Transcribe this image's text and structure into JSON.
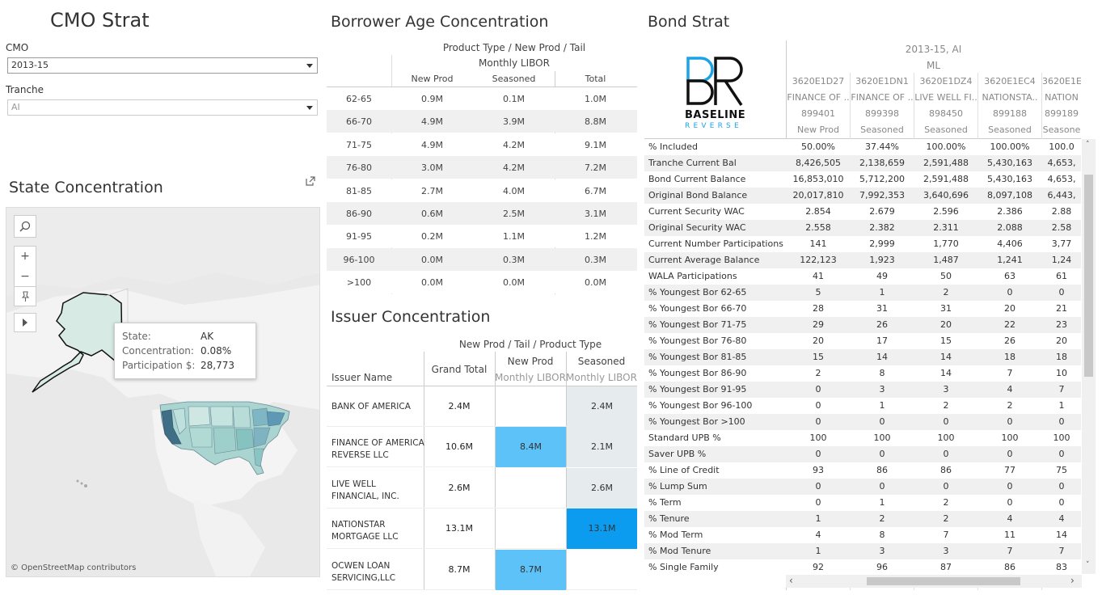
{
  "cmo_strat": {
    "title": "CMO Strat",
    "cmo_label": "CMO",
    "cmo_value": "2013-15",
    "tranche_label": "Tranche",
    "tranche_value": "AI"
  },
  "state_concentration": {
    "title": "State Concentration",
    "attribution": "© OpenStreetMap contributors",
    "tooltip": {
      "state_label": "State:",
      "state_value": "AK",
      "conc_label": "Concentration:",
      "conc_value": "0.08%",
      "part_label": "Participation $:",
      "part_value": "28,773"
    }
  },
  "borrower_age": {
    "title": "Borrower Age Concentration",
    "header1": "Product Type  /  New Prod / Tail",
    "header2": "Monthly LIBOR",
    "columns": [
      "New Prod",
      "Seasoned",
      "Total"
    ],
    "rows": [
      {
        "age": "62-65",
        "new": "0.9M",
        "seasoned": "0.1M",
        "total": "1.0M"
      },
      {
        "age": "66-70",
        "new": "4.9M",
        "seasoned": "3.9M",
        "total": "8.8M"
      },
      {
        "age": "71-75",
        "new": "4.9M",
        "seasoned": "4.2M",
        "total": "9.1M"
      },
      {
        "age": "76-80",
        "new": "3.0M",
        "seasoned": "4.2M",
        "total": "7.2M"
      },
      {
        "age": "81-85",
        "new": "2.7M",
        "seasoned": "4.0M",
        "total": "6.7M"
      },
      {
        "age": "86-90",
        "new": "0.6M",
        "seasoned": "2.5M",
        "total": "3.1M"
      },
      {
        "age": "91-95",
        "new": "0.2M",
        "seasoned": "1.1M",
        "total": "1.2M"
      },
      {
        "age": "96-100",
        "new": "0.0M",
        "seasoned": "0.3M",
        "total": "0.3M"
      },
      {
        "age": ">100",
        "new": "0.0M",
        "seasoned": "0.0M",
        "total": "0.0M"
      }
    ]
  },
  "issuer": {
    "title": "Issuer Concentration",
    "header_top": "New Prod / Tail  /  Product Type",
    "col_issuer": "Issuer Name",
    "col_total": "Grand Total",
    "col_new": "New Prod",
    "col_new_sub": "Monthly LIBOR",
    "col_seas": "Seasoned",
    "col_seas_sub": "Monthly LIBOR",
    "rows": [
      {
        "name1": "BANK OF AMERICA",
        "name2": "",
        "total": "2.4M",
        "new": "",
        "seasoned": "2.4M",
        "new_shade": 0,
        "seas_shade": 0.18
      },
      {
        "name1": "FINANCE OF AMERICA",
        "name2": "REVERSE LLC",
        "total": "10.6M",
        "new": "8.4M",
        "seasoned": "2.1M",
        "new_shade": 0.64,
        "seas_shade": 0.16
      },
      {
        "name1": "LIVE WELL",
        "name2": "FINANCIAL, INC.",
        "total": "2.6M",
        "new": "",
        "seasoned": "2.6M",
        "new_shade": 0,
        "seas_shade": 0.2
      },
      {
        "name1": "NATIONSTAR",
        "name2": "MORTGAGE LLC",
        "total": "13.1M",
        "new": "",
        "seasoned": "13.1M",
        "new_shade": 0,
        "seas_shade": 1.0
      },
      {
        "name1": "OCWEN LOAN",
        "name2": "SERVICING,LLC",
        "total": "8.7M",
        "new": "8.7M",
        "seasoned": "",
        "new_shade": 0.66,
        "seas_shade": 0
      }
    ]
  },
  "bond_strat": {
    "title": "Bond Strat",
    "logo_text": "BASELINE",
    "logo_sub": "REVERSE",
    "group_header": "2013-15, AI",
    "sub_header": "ML",
    "columns": [
      {
        "cusip": "3620E1D27",
        "issuer": "FINANCE OF ..",
        "pool": "899401",
        "type": "New Prod"
      },
      {
        "cusip": "3620E1DN1",
        "issuer": "FINANCE OF ..",
        "pool": "899398",
        "type": "Seasoned"
      },
      {
        "cusip": "3620E1DZ4",
        "issuer": "LIVE WELL FI..",
        "pool": "898450",
        "type": "Seasoned"
      },
      {
        "cusip": "3620E1EC4",
        "issuer": "NATIONSTA..",
        "pool": "899188",
        "type": "Seasoned"
      },
      {
        "cusip": "3620E1E",
        "issuer": "NATION",
        "pool": "899189",
        "type": "Seasone"
      }
    ],
    "rows": [
      {
        "name": "% Included",
        "values": [
          "50.00%",
          "37.44%",
          "100.00%",
          "100.00%",
          "100.0"
        ]
      },
      {
        "name": "Tranche Current Bal",
        "values": [
          "8,426,505",
          "2,138,659",
          "2,591,488",
          "5,430,163",
          "4,653,"
        ]
      },
      {
        "name": "Bond Current Balance",
        "values": [
          "16,853,010",
          "5,712,200",
          "2,591,488",
          "5,430,163",
          "4,653,"
        ]
      },
      {
        "name": "Original Bond Balance",
        "values": [
          "20,017,810",
          "7,992,353",
          "3,640,696",
          "8,097,108",
          "6,443,"
        ]
      },
      {
        "name": "Current Security WAC",
        "values": [
          "2.854",
          "2.679",
          "2.596",
          "2.386",
          "2.88"
        ]
      },
      {
        "name": "Original Security WAC",
        "values": [
          "2.558",
          "2.382",
          "2.311",
          "2.088",
          "2.58"
        ]
      },
      {
        "name": "Current Number Participations",
        "values": [
          "141",
          "2,999",
          "1,770",
          "4,406",
          "3,77"
        ]
      },
      {
        "name": "Current Average Balance",
        "values": [
          "122,123",
          "1,923",
          "1,487",
          "1,241",
          "1,24"
        ]
      },
      {
        "name": "WALA Participations",
        "values": [
          "41",
          "49",
          "50",
          "63",
          "61"
        ]
      },
      {
        "name": "% Youngest Bor 62-65",
        "values": [
          "5",
          "1",
          "2",
          "0",
          "0"
        ]
      },
      {
        "name": "% Youngest Bor 66-70",
        "values": [
          "28",
          "31",
          "31",
          "20",
          "21"
        ]
      },
      {
        "name": "% Youngest Bor 71-75",
        "values": [
          "29",
          "26",
          "20",
          "22",
          "23"
        ]
      },
      {
        "name": "% Youngest Bor 76-80",
        "values": [
          "20",
          "17",
          "15",
          "26",
          "20"
        ]
      },
      {
        "name": "% Youngest Bor 81-85",
        "values": [
          "15",
          "14",
          "14",
          "18",
          "18"
        ]
      },
      {
        "name": "% Youngest Bor 86-90",
        "values": [
          "2",
          "8",
          "14",
          "7",
          "10"
        ]
      },
      {
        "name": "% Youngest Bor 91-95",
        "values": [
          "0",
          "3",
          "3",
          "4",
          "7"
        ]
      },
      {
        "name": "% Youngest Bor 96-100",
        "values": [
          "0",
          "1",
          "2",
          "2",
          "1"
        ]
      },
      {
        "name": "% Youngest Bor >100",
        "values": [
          "0",
          "0",
          "0",
          "0",
          "0"
        ]
      },
      {
        "name": "Standard UPB %",
        "values": [
          "100",
          "100",
          "100",
          "100",
          "100"
        ]
      },
      {
        "name": "Saver UPB %",
        "values": [
          "0",
          "0",
          "0",
          "0",
          "0"
        ]
      },
      {
        "name": "% Line of Credit",
        "values": [
          "93",
          "86",
          "86",
          "77",
          "75"
        ]
      },
      {
        "name": "% Lump Sum",
        "values": [
          "0",
          "0",
          "0",
          "0",
          "0"
        ]
      },
      {
        "name": "% Term",
        "values": [
          "0",
          "1",
          "2",
          "0",
          "0"
        ]
      },
      {
        "name": "% Tenure",
        "values": [
          "1",
          "2",
          "2",
          "4",
          "4"
        ]
      },
      {
        "name": "% Mod Term",
        "values": [
          "4",
          "8",
          "7",
          "11",
          "14"
        ]
      },
      {
        "name": "% Mod Tenure",
        "values": [
          "1",
          "3",
          "3",
          "7",
          "7"
        ]
      },
      {
        "name": "% Single Family",
        "values": [
          "92",
          "96",
          "87",
          "86",
          "83"
        ]
      }
    ]
  },
  "colors": {
    "accent": "#1ba3e8",
    "map_highlight": "#d7ebe4",
    "cell_dark": "#0b9cf0",
    "cell_mid": "#5cc2f7"
  },
  "icons": [
    "search-icon",
    "zoom-in-icon",
    "zoom-out-icon",
    "pin-icon",
    "expand-arrow-icon",
    "popout-icon"
  ]
}
